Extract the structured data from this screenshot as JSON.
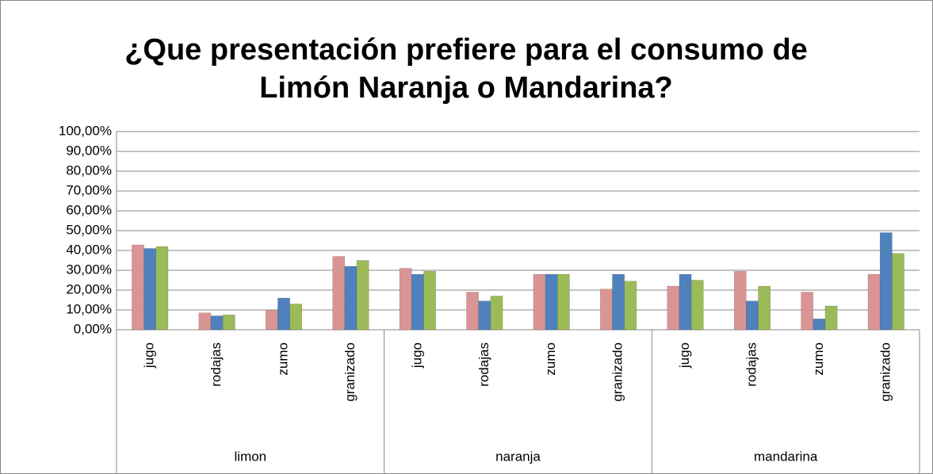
{
  "chart_data": {
    "type": "bar",
    "title": [
      "¿Que presentación prefiere para el consumo de",
      "Limón Naranja o Mandarina?"
    ],
    "categories": [
      "jugo",
      "rodajas",
      "zumo",
      "granizado",
      "jugo",
      "rodajas",
      "zumo",
      "granizado",
      "jugo",
      "rodajas",
      "zumo",
      "granizado"
    ],
    "category_groups": [
      "limon",
      "naranja",
      "mandarina"
    ],
    "series": [
      {
        "color": "#d99594",
        "values": [
          42.8,
          8.5,
          10,
          37,
          31,
          19,
          28,
          20.5,
          22,
          29.5,
          19,
          28
        ]
      },
      {
        "color": "#4f81bd",
        "values": [
          41,
          7,
          16,
          32,
          28,
          14.5,
          28,
          28,
          28,
          14.5,
          5.5,
          49
        ]
      },
      {
        "color": "#9bbb59",
        "values": [
          42,
          7.5,
          13,
          35,
          29.5,
          17,
          28,
          24.5,
          25,
          22,
          12,
          38.5
        ]
      }
    ],
    "ylim": [
      0,
      100
    ],
    "yticks": [
      {
        "value": 0,
        "label": "0,00%"
      },
      {
        "value": 10,
        "label": "10,00%"
      },
      {
        "value": 20,
        "label": "20,00%"
      },
      {
        "value": 30,
        "label": "30,00%"
      },
      {
        "value": 40,
        "label": "40,00%"
      },
      {
        "value": 50,
        "label": "50,00%"
      },
      {
        "value": 60,
        "label": "60,00%"
      },
      {
        "value": 70,
        "label": "70,00%"
      },
      {
        "value": 80,
        "label": "80,00%"
      },
      {
        "value": 90,
        "label": "90,00%"
      },
      {
        "value": 100,
        "label": "100,00%"
      }
    ],
    "grid": true
  }
}
